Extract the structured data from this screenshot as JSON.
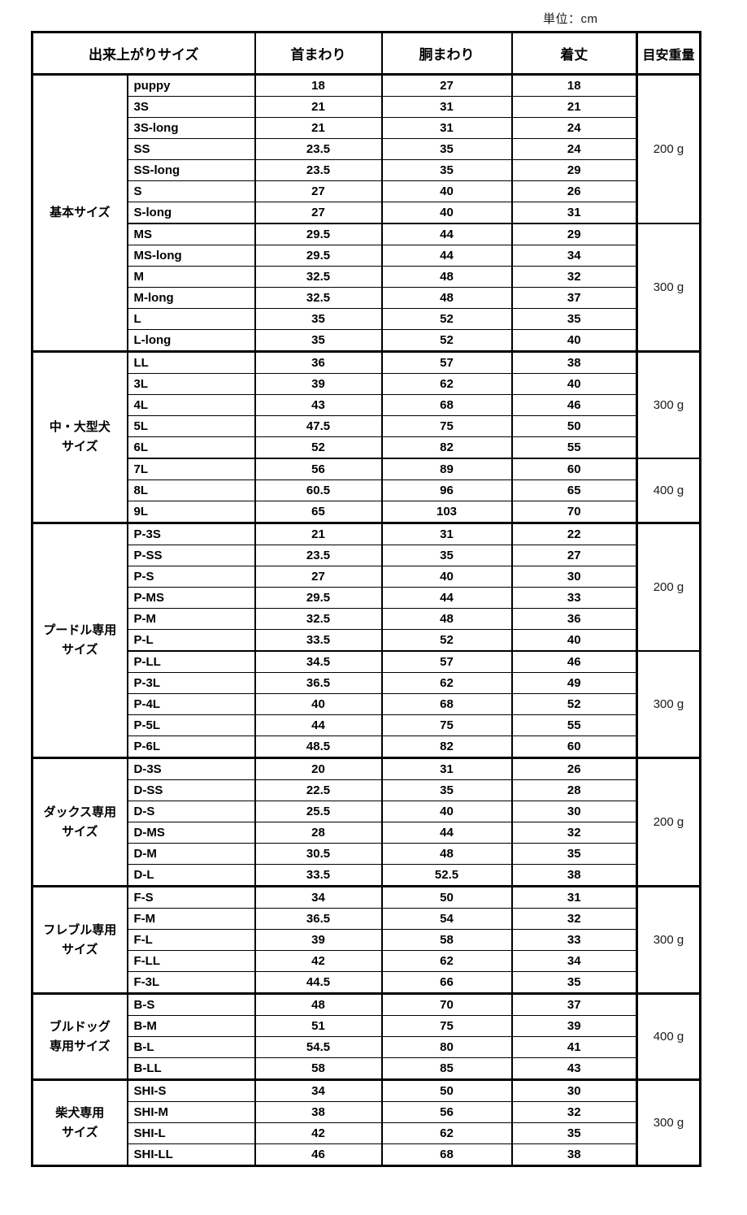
{
  "chart_data": {
    "type": "table",
    "unit_label": "単位：cm",
    "columns": [
      "出来上がりサイズ",
      "首まわり",
      "胴まわり",
      "着丈",
      "目安重量"
    ],
    "sections": [
      {
        "category": "基本サイズ",
        "groups": [
          {
            "weight": "200 g",
            "rows": [
              {
                "name": "puppy",
                "neck": 18,
                "girth": 27,
                "length": 18
              },
              {
                "name": "3S",
                "neck": 21,
                "girth": 31,
                "length": 21
              },
              {
                "name": "3S-long",
                "neck": 21,
                "girth": 31,
                "length": 24
              },
              {
                "name": "SS",
                "neck": 23.5,
                "girth": 35,
                "length": 24
              },
              {
                "name": "SS-long",
                "neck": 23.5,
                "girth": 35,
                "length": 29
              },
              {
                "name": "S",
                "neck": 27,
                "girth": 40,
                "length": 26
              },
              {
                "name": "S-long",
                "neck": 27,
                "girth": 40,
                "length": 31
              }
            ]
          },
          {
            "weight": "300 g",
            "rows": [
              {
                "name": "MS",
                "neck": 29.5,
                "girth": 44,
                "length": 29
              },
              {
                "name": "MS-long",
                "neck": 29.5,
                "girth": 44,
                "length": 34
              },
              {
                "name": "M",
                "neck": 32.5,
                "girth": 48,
                "length": 32
              },
              {
                "name": "M-long",
                "neck": 32.5,
                "girth": 48,
                "length": 37
              },
              {
                "name": "L",
                "neck": 35,
                "girth": 52,
                "length": 35
              },
              {
                "name": "L-long",
                "neck": 35,
                "girth": 52,
                "length": 40
              }
            ]
          }
        ]
      },
      {
        "category": "中・大型犬\nサイズ",
        "groups": [
          {
            "weight": "300 g",
            "rows": [
              {
                "name": "LL",
                "neck": 36,
                "girth": 57,
                "length": 38
              },
              {
                "name": "3L",
                "neck": 39,
                "girth": 62,
                "length": 40
              },
              {
                "name": "4L",
                "neck": 43,
                "girth": 68,
                "length": 46
              },
              {
                "name": "5L",
                "neck": 47.5,
                "girth": 75,
                "length": 50
              },
              {
                "name": "6L",
                "neck": 52,
                "girth": 82,
                "length": 55
              }
            ]
          },
          {
            "weight": "400 g",
            "rows": [
              {
                "name": "7L",
                "neck": 56,
                "girth": 89,
                "length": 60
              },
              {
                "name": "8L",
                "neck": 60.5,
                "girth": 96,
                "length": 65
              },
              {
                "name": "9L",
                "neck": 65,
                "girth": 103,
                "length": 70
              }
            ]
          }
        ]
      },
      {
        "category": "プードル専用\nサイズ",
        "groups": [
          {
            "weight": "200 g",
            "rows": [
              {
                "name": "P-3S",
                "neck": 21,
                "girth": 31,
                "length": 22
              },
              {
                "name": "P-SS",
                "neck": 23.5,
                "girth": 35,
                "length": 27
              },
              {
                "name": "P-S",
                "neck": 27,
                "girth": 40,
                "length": 30
              },
              {
                "name": "P-MS",
                "neck": 29.5,
                "girth": 44,
                "length": 33
              },
              {
                "name": "P-M",
                "neck": 32.5,
                "girth": 48,
                "length": 36
              },
              {
                "name": "P-L",
                "neck": 33.5,
                "girth": 52,
                "length": 40
              }
            ]
          },
          {
            "weight": "300 g",
            "rows": [
              {
                "name": "P-LL",
                "neck": 34.5,
                "girth": 57,
                "length": 46
              },
              {
                "name": "P-3L",
                "neck": 36.5,
                "girth": 62,
                "length": 49
              },
              {
                "name": "P-4L",
                "neck": 40,
                "girth": 68,
                "length": 52
              },
              {
                "name": "P-5L",
                "neck": 44,
                "girth": 75,
                "length": 55
              },
              {
                "name": "P-6L",
                "neck": 48.5,
                "girth": 82,
                "length": 60
              }
            ]
          }
        ]
      },
      {
        "category": "ダックス専用\nサイズ",
        "groups": [
          {
            "weight": "200 g",
            "rows": [
              {
                "name": "D-3S",
                "neck": 20,
                "girth": 31,
                "length": 26
              },
              {
                "name": "D-SS",
                "neck": 22.5,
                "girth": 35,
                "length": 28
              },
              {
                "name": "D-S",
                "neck": 25.5,
                "girth": 40,
                "length": 30
              },
              {
                "name": "D-MS",
                "neck": 28,
                "girth": 44,
                "length": 32
              },
              {
                "name": "D-M",
                "neck": 30.5,
                "girth": 48,
                "length": 35
              },
              {
                "name": "D-L",
                "neck": 33.5,
                "girth": 52.5,
                "length": 38
              }
            ]
          }
        ]
      },
      {
        "category": "フレブル専用\nサイズ",
        "groups": [
          {
            "weight": "300 g",
            "rows": [
              {
                "name": "F-S",
                "neck": 34,
                "girth": 50,
                "length": 31
              },
              {
                "name": "F-M",
                "neck": 36.5,
                "girth": 54,
                "length": 32
              },
              {
                "name": "F-L",
                "neck": 39,
                "girth": 58,
                "length": 33
              },
              {
                "name": "F-LL",
                "neck": 42,
                "girth": 62,
                "length": 34
              },
              {
                "name": "F-3L",
                "neck": 44.5,
                "girth": 66,
                "length": 35
              }
            ]
          }
        ]
      },
      {
        "category": "ブルドッグ\n専用サイズ",
        "groups": [
          {
            "weight": "400 g",
            "rows": [
              {
                "name": "B-S",
                "neck": 48,
                "girth": 70,
                "length": 37
              },
              {
                "name": "B-M",
                "neck": 51,
                "girth": 75,
                "length": 39
              },
              {
                "name": "B-L",
                "neck": 54.5,
                "girth": 80,
                "length": 41
              },
              {
                "name": "B-LL",
                "neck": 58,
                "girth": 85,
                "length": 43
              }
            ]
          }
        ]
      },
      {
        "category": "柴犬専用\nサイズ",
        "groups": [
          {
            "weight": "300 g",
            "rows": [
              {
                "name": "SHI-S",
                "neck": 34,
                "girth": 50,
                "length": 30
              },
              {
                "name": "SHI-M",
                "neck": 38,
                "girth": 56,
                "length": 32
              },
              {
                "name": "SHI-L",
                "neck": 42,
                "girth": 62,
                "length": 35
              },
              {
                "name": "SHI-LL",
                "neck": 46,
                "girth": 68,
                "length": 38
              }
            ]
          }
        ]
      }
    ]
  }
}
